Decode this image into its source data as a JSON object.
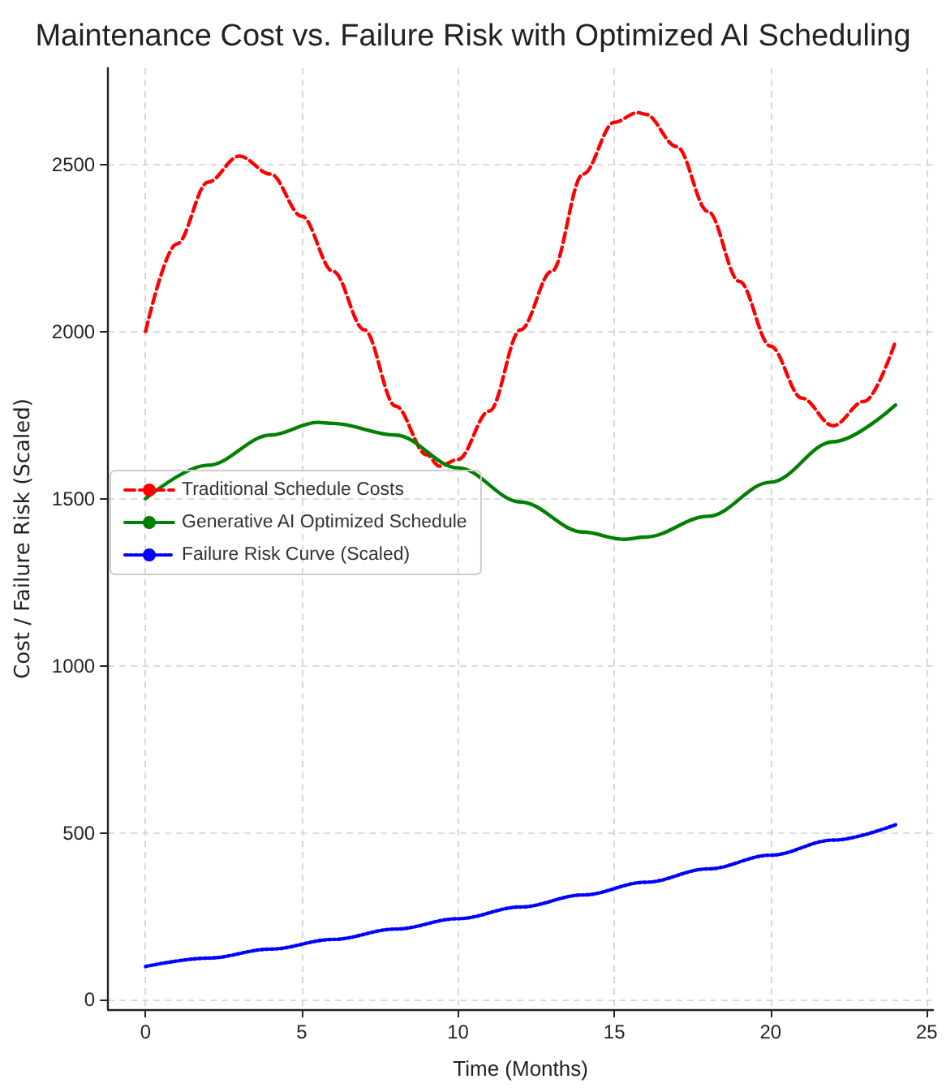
{
  "chart_data": {
    "type": "line",
    "title": "Maintenance Cost vs. Failure Risk with Optimized AI Scheduling",
    "xlabel": "Time (Months)",
    "ylabel": "Cost / Failure Risk (Scaled)",
    "xlim": [
      -1.2,
      25.2
    ],
    "ylim": [
      -28,
      2788
    ],
    "xticks": [
      0,
      5,
      10,
      15,
      20,
      25
    ],
    "yticks": [
      0,
      500,
      1000,
      1500,
      2000,
      2500
    ],
    "grid": true,
    "legend": "left",
    "marker": "none",
    "series": [
      {
        "name": "Traditional Schedule Costs",
        "color": "#ff0000",
        "line_style": "dashed",
        "x": [
          0,
          1,
          2,
          3,
          4,
          5,
          6,
          7,
          8,
          9,
          9.4,
          10,
          11,
          12,
          13,
          14,
          15,
          15.75,
          16,
          17,
          18,
          19,
          20,
          21,
          22,
          23,
          24
        ],
        "values": [
          2000,
          2262,
          2447,
          2525,
          2471,
          2345,
          2180,
          2005,
          1777,
          1631,
          1597,
          1617,
          1762,
          2005,
          2180,
          2471,
          2626,
          2655,
          2650,
          2553,
          2359,
          2150,
          1956,
          1801,
          1718,
          1791,
          1971
        ]
      },
      {
        "name": "Generative AI Optimized Schedule",
        "color": "#008000",
        "line_style": "solid",
        "x": [
          0,
          2,
          4,
          5.5,
          6,
          8,
          10,
          12,
          14,
          15.3,
          16,
          18,
          20,
          22,
          24
        ],
        "values": [
          1500,
          1600,
          1690,
          1728,
          1725,
          1690,
          1592,
          1490,
          1400,
          1378,
          1385,
          1447,
          1549,
          1670,
          1780
        ]
      },
      {
        "name": "Failure Risk Curve (Scaled)",
        "color": "#0000ff",
        "line_style": "dotted",
        "x": [
          0,
          2,
          4,
          6,
          8,
          10,
          12,
          14,
          16,
          18,
          20,
          22,
          24
        ],
        "values": [
          100,
          125,
          152,
          181,
          212,
          243,
          278,
          314,
          352,
          392,
          433,
          478,
          524
        ]
      }
    ]
  }
}
